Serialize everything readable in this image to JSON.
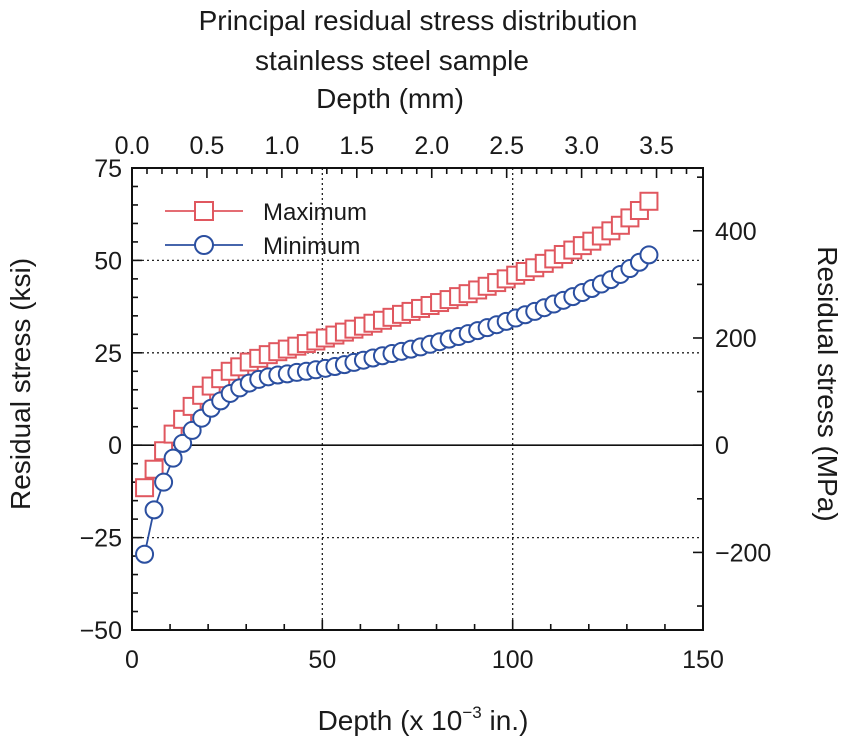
{
  "chart_data": {
    "type": "scatter",
    "title": "Principal residual stress distribution",
    "subtitle": "stainless steel sample",
    "top_xlabel": "Depth (mm)",
    "xlabel_main": "Depth (x 10",
    "xlabel_sup": "−3",
    "xlabel_tail": " in.)",
    "ylabel": "Residual stress (ksi)",
    "ylabel_right": "Residual stress (MPa)",
    "xlim": [
      0,
      150
    ],
    "ylim": [
      -50,
      75
    ],
    "x_ticks": [
      0,
      50,
      100,
      150
    ],
    "y_ticks": [
      -50,
      -25,
      0,
      25,
      50,
      75
    ],
    "y_tick_labels": [
      "−50",
      "−25",
      "0",
      "25",
      "50",
      "75"
    ],
    "top_x_ticks": [
      0.0,
      0.5,
      1.0,
      1.5,
      2.0,
      2.5,
      3.0,
      3.5
    ],
    "top_x_tick_labels": [
      "0.0",
      "0.5",
      "1.0",
      "1.5",
      "2.0",
      "2.5",
      "3.0",
      "3.5"
    ],
    "right_y_ticks": [
      -200,
      0,
      200,
      400
    ],
    "right_y_tick_labels": [
      "−200",
      "0",
      "200",
      "400"
    ],
    "grid_x": [
      50,
      100
    ],
    "grid_y": [
      -25,
      25,
      50
    ],
    "legend_position": "top-left",
    "series": [
      {
        "name": "Maximum",
        "color": "#e0575f",
        "marker": "square",
        "x": [
          3.3,
          5.8,
          8.3,
          10.8,
          13.3,
          15.8,
          18.3,
          20.8,
          23.3,
          25.8,
          28.3,
          30.8,
          33.3,
          35.8,
          38.3,
          40.8,
          43.3,
          45.8,
          48.3,
          50.8,
          53.3,
          55.8,
          58.3,
          60.8,
          63.3,
          65.8,
          68.3,
          70.8,
          73.3,
          75.8,
          78.3,
          80.8,
          83.3,
          85.8,
          88.3,
          90.8,
          93.3,
          95.8,
          98.3,
          100.8,
          103.3,
          105.8,
          108.3,
          110.8,
          113.3,
          115.8,
          118.3,
          120.8,
          123.3,
          125.8,
          128.3,
          130.8,
          133.3,
          135.8
        ],
        "y": [
          -11.5,
          -6.5,
          -1.5,
          3,
          7,
          10.5,
          13.5,
          16,
          18,
          20,
          21.2,
          22.5,
          23.5,
          24.5,
          25.3,
          26,
          26.8,
          27.5,
          28.2,
          29,
          29.8,
          30.6,
          31.4,
          32.2,
          33,
          33.8,
          34.6,
          35.4,
          36.2,
          37,
          37.8,
          38.6,
          39.4,
          40.2,
          41,
          42,
          43,
          44,
          45,
          46,
          47,
          48,
          49.2,
          50.4,
          51.6,
          52.8,
          54,
          55.2,
          56.6,
          58,
          59.5,
          61.5,
          63.5,
          66
        ]
      },
      {
        "name": "Minimum",
        "color": "#2b4fa0",
        "marker": "circle",
        "x": [
          3.3,
          5.8,
          8.3,
          10.8,
          13.3,
          15.8,
          18.3,
          20.8,
          23.3,
          25.8,
          28.3,
          30.8,
          33.3,
          35.8,
          38.3,
          40.8,
          43.3,
          45.8,
          48.3,
          50.8,
          53.3,
          55.8,
          58.3,
          60.8,
          63.3,
          65.8,
          68.3,
          70.8,
          73.3,
          75.8,
          78.3,
          80.8,
          83.3,
          85.8,
          88.3,
          90.8,
          93.3,
          95.8,
          98.3,
          100.8,
          103.3,
          105.8,
          108.3,
          110.8,
          113.3,
          115.8,
          118.3,
          120.8,
          123.3,
          125.8,
          128.3,
          130.8,
          133.3,
          135.8
        ],
        "y": [
          -29.5,
          -17.5,
          -10,
          -3.5,
          0.5,
          4,
          7.3,
          10,
          12,
          14,
          15.5,
          16.8,
          17.8,
          18.5,
          19,
          19.3,
          19.7,
          20,
          20.4,
          20.8,
          21.3,
          21.8,
          22.4,
          23,
          23.6,
          24.2,
          24.8,
          25.4,
          26,
          26.6,
          27.3,
          28,
          28.7,
          29.4,
          30.2,
          31,
          31.8,
          32.6,
          33.5,
          34.4,
          35.3,
          36.2,
          37.2,
          38.2,
          39.2,
          40.2,
          41.3,
          42.4,
          43.6,
          44.8,
          46.2,
          47.8,
          49.5,
          51.5
        ]
      }
    ]
  }
}
